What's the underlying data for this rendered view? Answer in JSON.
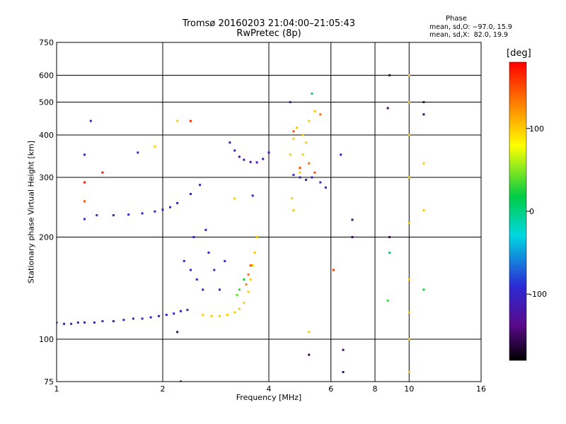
{
  "title": {
    "line1": "Tromsø 20160203 21:04:00–21:05:43",
    "line2": "RwPretec (8p)"
  },
  "phase_box": {
    "heading": "Phase",
    "o_stats": "mean, sd,O: −97.0, 15.9",
    "x_stats": "mean, sd,X:  82.0, 19.9"
  },
  "colorbar": {
    "unit_label": "[deg]",
    "ticks": [
      100,
      0,
      -100
    ],
    "range": [
      -180,
      180
    ]
  },
  "chart_data": {
    "type": "scatter",
    "xlabel": "Frequency [MHz]",
    "ylabel": "Stationary phase Virtual Height [km]",
    "x_scale": "log",
    "y_scale": "log",
    "xlim": [
      1,
      16
    ],
    "ylim": [
      75,
      750
    ],
    "x_ticks": [
      1,
      2,
      4,
      6,
      8,
      10,
      16
    ],
    "y_ticks": [
      75,
      100,
      200,
      300,
      400,
      500,
      600,
      750
    ],
    "grid": true,
    "color_encodes": "phase [deg]",
    "series": [
      {
        "points": [
          [
            1.0,
            112,
            -100
          ],
          [
            1.05,
            111,
            -100
          ],
          [
            1.1,
            111,
            -100
          ],
          [
            1.15,
            112,
            -100
          ],
          [
            1.2,
            112,
            -100
          ],
          [
            1.28,
            112,
            -100
          ],
          [
            1.35,
            113,
            -100
          ],
          [
            1.45,
            113,
            -100
          ],
          [
            1.55,
            114,
            -100
          ],
          [
            1.65,
            115,
            -100
          ],
          [
            1.75,
            115,
            -100
          ],
          [
            1.85,
            116,
            -100
          ],
          [
            1.95,
            117,
            -100
          ],
          [
            2.05,
            118,
            -100
          ],
          [
            2.15,
            119,
            -100
          ],
          [
            2.25,
            121,
            -100
          ],
          [
            2.35,
            122,
            -100
          ],
          [
            1.2,
            226,
            -100
          ],
          [
            1.3,
            232,
            -100
          ],
          [
            1.45,
            232,
            -100
          ],
          [
            1.6,
            233,
            -100
          ],
          [
            1.75,
            235,
            -100
          ],
          [
            1.9,
            238,
            -100
          ],
          [
            2.0,
            241,
            -100
          ],
          [
            2.1,
            245,
            -100
          ],
          [
            2.2,
            252,
            -100
          ],
          [
            2.4,
            268,
            -100
          ],
          [
            2.55,
            285,
            -100
          ],
          [
            2.3,
            170,
            -100
          ],
          [
            2.4,
            160,
            -100
          ],
          [
            2.5,
            150,
            -100
          ],
          [
            2.6,
            140,
            -100
          ],
          [
            2.7,
            180,
            -100
          ],
          [
            2.8,
            160,
            -100
          ],
          [
            2.9,
            140,
            -100
          ],
          [
            3.0,
            170,
            -100
          ],
          [
            2.45,
            200,
            -100
          ],
          [
            2.65,
            210,
            -100
          ],
          [
            3.1,
            380,
            -120
          ],
          [
            3.2,
            360,
            -120
          ],
          [
            3.3,
            345,
            -120
          ],
          [
            3.4,
            338,
            -120
          ],
          [
            3.55,
            333,
            -120
          ],
          [
            3.7,
            332,
            -120
          ],
          [
            3.85,
            340,
            -120
          ],
          [
            4.0,
            355,
            -120
          ],
          [
            3.6,
            265,
            -100
          ],
          [
            4.7,
            305,
            -100
          ],
          [
            4.9,
            300,
            -110
          ],
          [
            5.1,
            295,
            -110
          ],
          [
            5.3,
            300,
            -100
          ],
          [
            5.6,
            290,
            -100
          ],
          [
            5.8,
            280,
            -100
          ],
          [
            6.4,
            350,
            -100
          ],
          [
            1.25,
            440,
            -100
          ],
          [
            1.2,
            350,
            -100
          ],
          [
            1.7,
            355,
            -100
          ],
          [
            4.6,
            500,
            -100
          ]
        ]
      },
      {
        "points": [
          [
            2.6,
            118,
            100
          ],
          [
            2.75,
            117,
            100
          ],
          [
            2.9,
            117,
            100
          ],
          [
            3.05,
            118,
            100
          ],
          [
            3.2,
            120,
            100
          ],
          [
            3.3,
            123,
            100
          ],
          [
            3.4,
            128,
            100
          ],
          [
            3.5,
            138,
            100
          ],
          [
            3.55,
            150,
            100
          ],
          [
            3.6,
            165,
            100
          ],
          [
            3.65,
            180,
            100
          ],
          [
            3.7,
            200,
            100
          ],
          [
            4.6,
            350,
            100
          ],
          [
            4.7,
            390,
            100
          ],
          [
            4.8,
            420,
            100
          ],
          [
            5.0,
            400,
            100
          ],
          [
            5.1,
            380,
            100
          ],
          [
            5.2,
            440,
            100
          ],
          [
            5.4,
            470,
            100
          ],
          [
            5.0,
            350,
            100
          ],
          [
            4.9,
            310,
            100
          ],
          [
            4.65,
            260,
            100
          ],
          [
            4.7,
            240,
            100
          ],
          [
            10.0,
            600,
            100
          ],
          [
            10.0,
            500,
            100
          ],
          [
            10.0,
            400,
            100
          ],
          [
            10.0,
            300,
            100
          ],
          [
            10.0,
            220,
            100
          ],
          [
            10.0,
            150,
            100
          ],
          [
            10.0,
            120,
            100
          ],
          [
            10.0,
            100,
            100
          ],
          [
            10.0,
            80,
            100
          ],
          [
            1.9,
            370,
            100
          ],
          [
            2.2,
            440,
            100
          ],
          [
            3.2,
            260,
            100
          ],
          [
            5.2,
            105,
            100
          ],
          [
            11.0,
            330,
            100
          ],
          [
            11.0,
            240,
            100
          ]
        ]
      },
      {
        "points": [
          [
            3.55,
            165,
            150
          ],
          [
            3.5,
            155,
            140
          ],
          [
            3.45,
            145,
            130
          ],
          [
            4.9,
            320,
            150
          ],
          [
            5.2,
            330,
            140
          ],
          [
            5.4,
            310,
            150
          ],
          [
            4.7,
            410,
            150
          ],
          [
            5.6,
            460,
            140
          ],
          [
            2.4,
            440,
            160
          ],
          [
            1.2,
            290,
            170
          ],
          [
            1.2,
            255,
            150
          ],
          [
            1.35,
            310,
            170
          ],
          [
            6.1,
            160,
            160
          ]
        ]
      },
      {
        "points": [
          [
            3.3,
            140,
            30
          ],
          [
            3.4,
            150,
            20
          ],
          [
            3.25,
            135,
            40
          ],
          [
            5.3,
            530,
            20
          ],
          [
            8.8,
            180,
            10
          ],
          [
            8.7,
            130,
            30
          ],
          [
            11.0,
            140,
            20
          ]
        ]
      },
      {
        "points": [
          [
            2.25,
            75,
            -150
          ],
          [
            2.2,
            105,
            -150
          ],
          [
            5.2,
            90,
            -150
          ],
          [
            6.5,
            93,
            -150
          ],
          [
            6.5,
            80,
            -150
          ],
          [
            6.9,
            200,
            -150
          ],
          [
            6.9,
            225,
            -150
          ],
          [
            8.8,
            600,
            -150
          ],
          [
            11.0,
            500,
            -150
          ],
          [
            11.0,
            460,
            -150
          ],
          [
            8.7,
            480,
            -150
          ],
          [
            8.8,
            200,
            -150
          ]
        ]
      }
    ]
  }
}
